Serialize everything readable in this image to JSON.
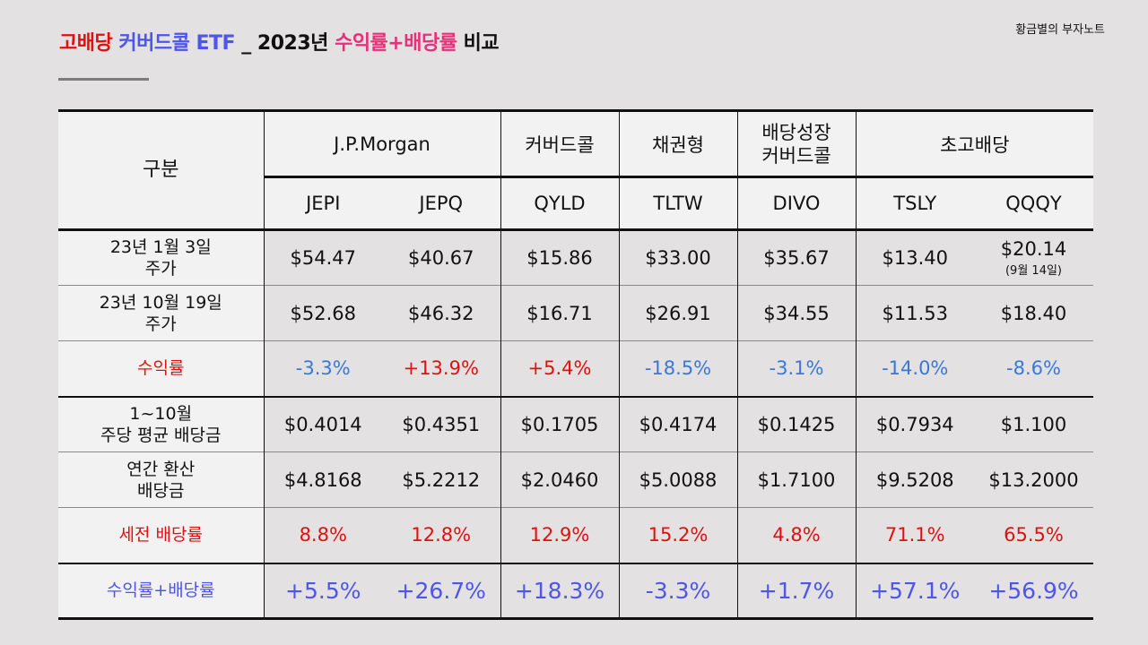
{
  "header": {
    "title_part1": "고배당",
    "title_part2": "커버드콜 ETF",
    "title_part3": "_ 2023년",
    "title_part4": "수익률+배당률",
    "title_part5": "비교",
    "author": "황금별의 부자노트"
  },
  "table": {
    "corner_label": "구분",
    "groups": [
      "J.P.Morgan",
      "커버드콜",
      "채권형",
      "배당성장\n커버드콜",
      "초고배당"
    ],
    "tickers": [
      "JEPI",
      "JEPQ",
      "QYLD",
      "TLTW",
      "DIVO",
      "TSLY",
      "QQQY"
    ],
    "rows": [
      {
        "label": "23년 1월 3일\n주가",
        "values": [
          "$54.47",
          "$40.67",
          "$15.86",
          "$33.00",
          "$35.67",
          "$13.40",
          "$20.14"
        ],
        "note": "(9월 14일)"
      },
      {
        "label": "23년 10월 19일\n주가",
        "values": [
          "$52.68",
          "$46.32",
          "$16.71",
          "$26.91",
          "$34.55",
          "$11.53",
          "$18.40"
        ]
      },
      {
        "label": "수익률",
        "values": [
          "-3.3%",
          "+13.9%",
          "+5.4%",
          "-18.5%",
          "-3.1%",
          "-14.0%",
          "-8.6%"
        ]
      },
      {
        "label": "1~10월\n주당 평균 배당금",
        "values": [
          "$0.4014",
          "$0.4351",
          "$0.1705",
          "$0.4174",
          "$0.1425",
          "$0.7934",
          "$1.100"
        ]
      },
      {
        "label": "연간 환산\n배당금",
        "values": [
          "$4.8168",
          "$5.2212",
          "$2.0460",
          "$5.0088",
          "$1.7100",
          "$9.5208",
          "$13.2000"
        ]
      },
      {
        "label": "세전 배당률",
        "values": [
          "8.8%",
          "12.8%",
          "12.9%",
          "15.2%",
          "4.8%",
          "71.1%",
          "65.5%"
        ]
      },
      {
        "label": "수익률+배당률",
        "values": [
          "+5.5%",
          "+26.7%",
          "+18.3%",
          "-3.3%",
          "+1.7%",
          "+57.1%",
          "+56.9%"
        ]
      }
    ]
  }
}
